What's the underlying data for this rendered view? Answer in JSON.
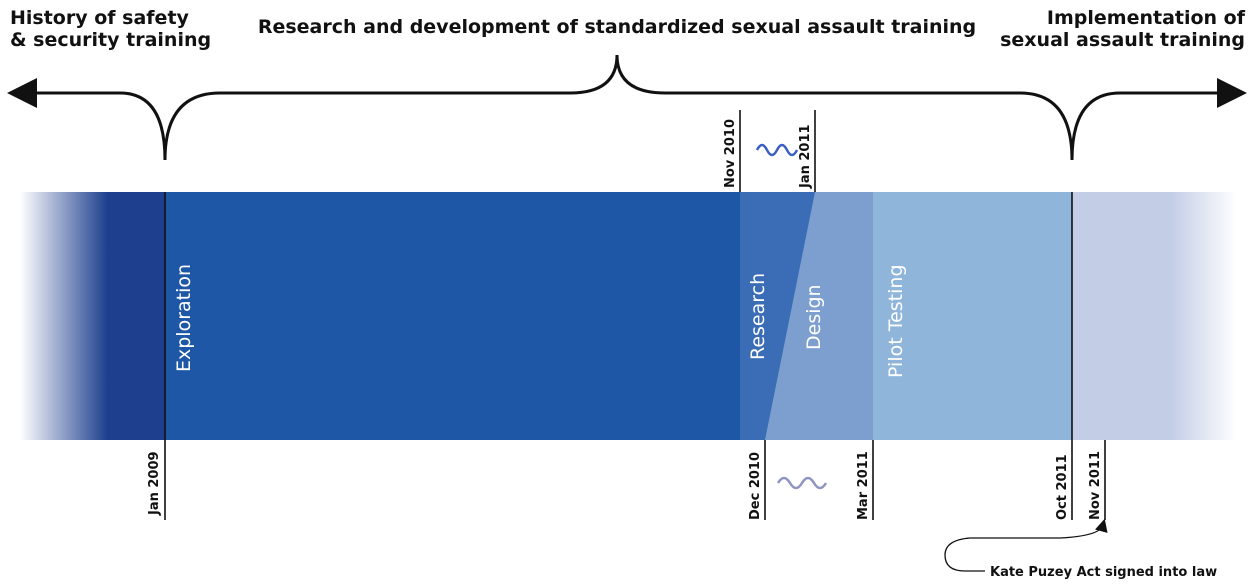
{
  "headers": {
    "left": [
      "History of safety",
      "& security training"
    ],
    "center": "Research and development of standardized sexual assault training",
    "right": [
      "Implementation of",
      "sexual assault training"
    ]
  },
  "phases": [
    "Exploration",
    "Research",
    "Design",
    "Pilot Testing"
  ],
  "dates": [
    "Jan 2009",
    "Nov 2010",
    "Jan 2011",
    "Dec 2010",
    "Mar 2011",
    "Oct 2011",
    "Nov 2011"
  ],
  "annotation": "Kate Puzey Act signed into law"
}
